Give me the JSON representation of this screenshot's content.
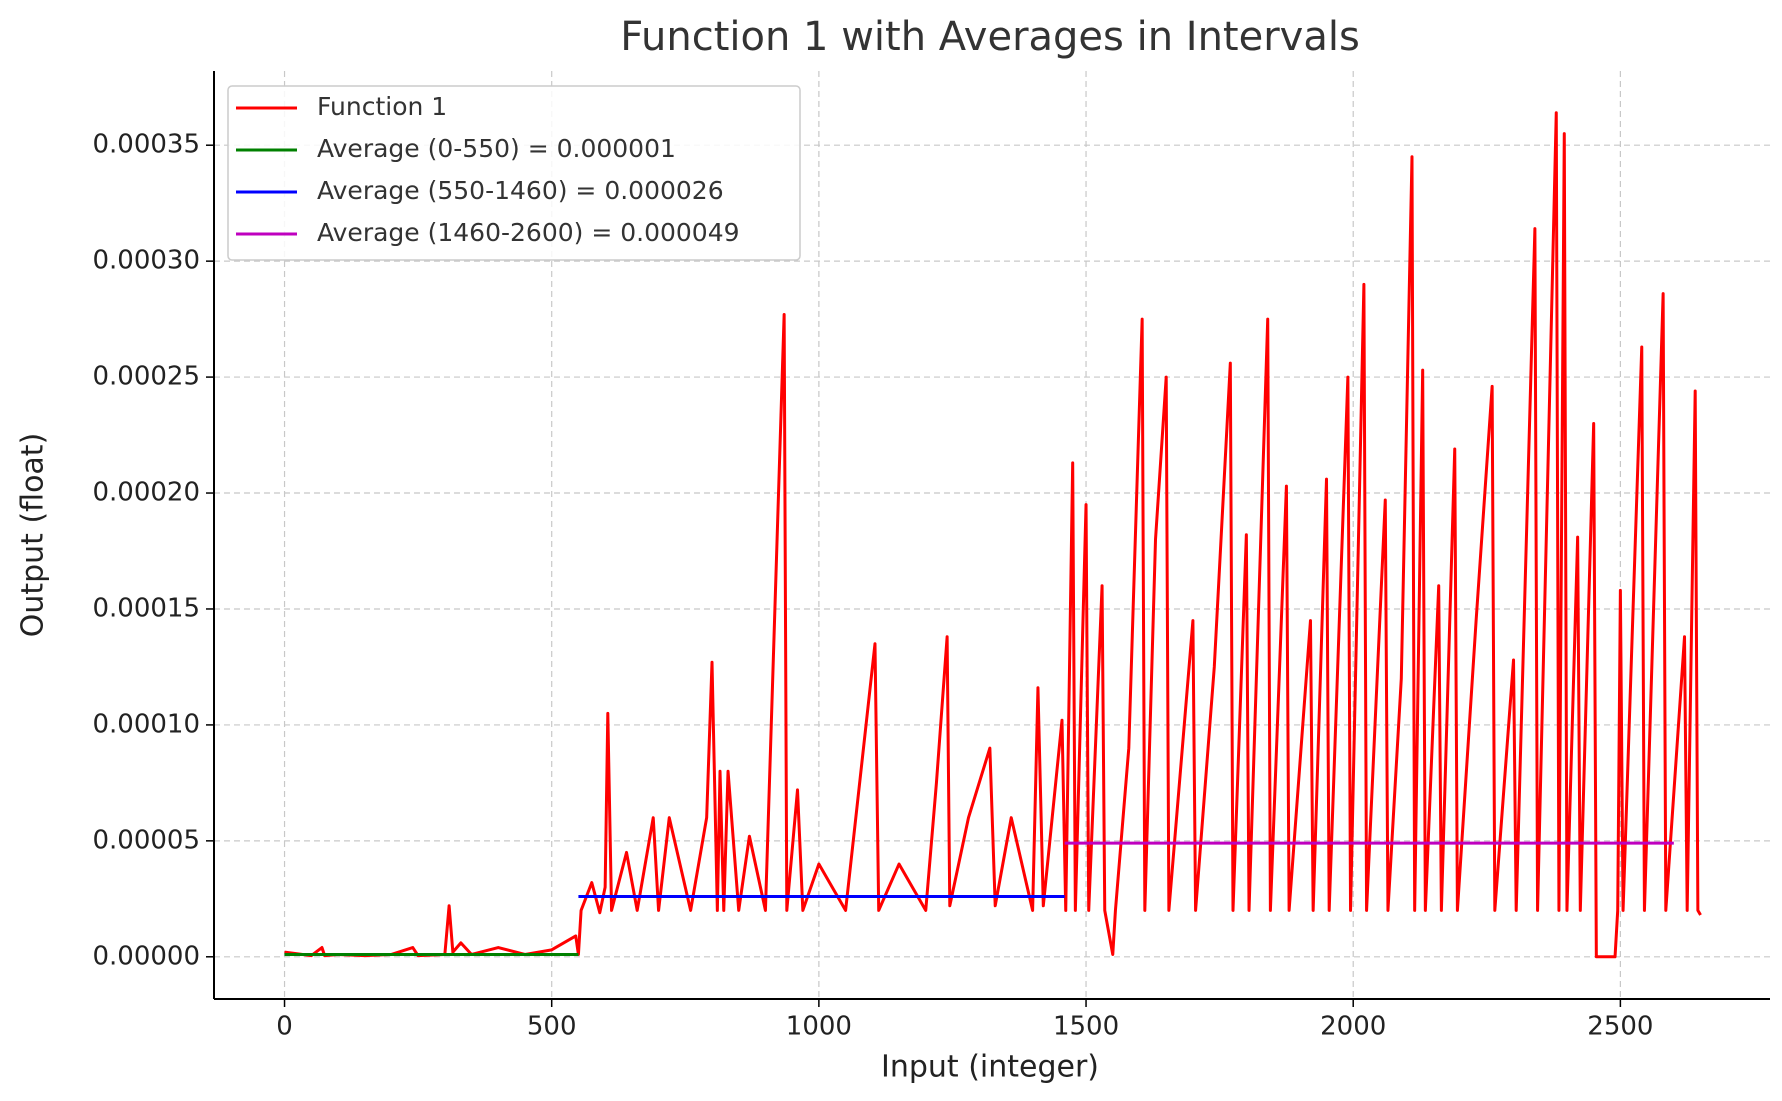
{
  "chart_data": {
    "type": "line",
    "title": "Function 1 with Averages in Intervals",
    "xlabel": "Input (integer)",
    "ylabel": "Output (float)",
    "xlim": [
      -132,
      2780
    ],
    "ylim": [
      -1.82e-05,
      0.000382
    ],
    "xticks": [
      0,
      500,
      1000,
      1500,
      2000,
      2500
    ],
    "yticks": [
      {
        "value": 0,
        "label": "0.00000"
      },
      {
        "value": 5e-05,
        "label": "0.00005"
      },
      {
        "value": 0.0001,
        "label": "0.00010"
      },
      {
        "value": 0.00015,
        "label": "0.00015"
      },
      {
        "value": 0.0002,
        "label": "0.00020"
      },
      {
        "value": 0.00025,
        "label": "0.00025"
      },
      {
        "value": 0.0003,
        "label": "0.00030"
      },
      {
        "value": 0.00035,
        "label": "0.00035"
      }
    ],
    "grid": true,
    "legend": "upper left",
    "series": [
      {
        "name": "Function 1",
        "color": "#ff0000",
        "x": [
          0,
          50,
          70,
          75,
          100,
          150,
          200,
          240,
          250,
          300,
          308,
          315,
          330,
          350,
          400,
          450,
          500,
          545,
          550,
          555,
          575,
          590,
          600,
          605,
          612,
          640,
          660,
          690,
          700,
          720,
          760,
          790,
          800,
          810,
          815,
          822,
          830,
          850,
          870,
          900,
          935,
          940,
          960,
          970,
          1000,
          1050,
          1105,
          1112,
          1150,
          1200,
          1220,
          1240,
          1245,
          1280,
          1320,
          1330,
          1360,
          1400,
          1410,
          1420,
          1455,
          1462,
          1475,
          1480,
          1500,
          1505,
          1530,
          1535,
          1550,
          1555,
          1580,
          1605,
          1610,
          1630,
          1650,
          1655,
          1700,
          1705,
          1740,
          1770,
          1775,
          1800,
          1805,
          1840,
          1845,
          1875,
          1880,
          1920,
          1925,
          1950,
          1955,
          1990,
          1995,
          2020,
          2025,
          2060,
          2065,
          2090,
          2110,
          2115,
          2130,
          2135,
          2160,
          2165,
          2190,
          2195,
          2230,
          2260,
          2265,
          2300,
          2305,
          2340,
          2345,
          2380,
          2385,
          2395,
          2400,
          2420,
          2425,
          2450,
          2455,
          2460,
          2490,
          2495,
          2500,
          2505,
          2540,
          2545,
          2580,
          2585,
          2620,
          2625,
          2640,
          2645,
          2650
        ],
        "values": [
          2e-06,
          5e-07,
          4e-06,
          5e-07,
          1e-06,
          5e-07,
          1e-06,
          4e-06,
          5e-07,
          1e-06,
          2.2e-05,
          2e-06,
          6e-06,
          1e-06,
          4e-06,
          1e-06,
          3e-06,
          9e-06,
          1e-06,
          2e-05,
          3.2e-05,
          1.9e-05,
          3e-05,
          0.000105,
          2e-05,
          4.5e-05,
          2e-05,
          6e-05,
          2e-05,
          6e-05,
          2e-05,
          6e-05,
          0.000127,
          2e-05,
          8e-05,
          2e-05,
          8e-05,
          2e-05,
          5.2e-05,
          2e-05,
          0.000277,
          2e-05,
          7.2e-05,
          2e-05,
          4e-05,
          2e-05,
          0.000135,
          2e-05,
          4e-05,
          2e-05,
          7.5e-05,
          0.000138,
          2.2e-05,
          6e-05,
          9e-05,
          2.2e-05,
          6e-05,
          2e-05,
          0.000116,
          2.2e-05,
          0.000102,
          2e-05,
          0.000213,
          2e-05,
          0.000195,
          2e-05,
          0.00016,
          2e-05,
          1e-06,
          2e-05,
          9e-05,
          0.000275,
          2e-05,
          0.00018,
          0.00025,
          2e-05,
          0.000145,
          2e-05,
          0.000125,
          0.000256,
          2e-05,
          0.000182,
          2e-05,
          0.000275,
          2e-05,
          0.000203,
          2e-05,
          0.000145,
          2e-05,
          0.000206,
          2e-05,
          0.00025,
          2e-05,
          0.00029,
          2e-05,
          0.000197,
          2e-05,
          0.00012,
          0.000345,
          2e-05,
          0.000253,
          2e-05,
          0.00016,
          2e-05,
          0.000219,
          2e-05,
          0.000145,
          0.000246,
          2e-05,
          0.000128,
          2e-05,
          0.000314,
          2e-05,
          0.000364,
          2e-05,
          0.000355,
          2e-05,
          0.000181,
          2e-05,
          0.00023,
          0,
          0,
          0,
          2e-05,
          0.000158,
          2e-05,
          0.000263,
          2e-05,
          0.000286,
          2e-05,
          0.000138,
          2e-05,
          0.000244,
          2e-05,
          1.8e-05
        ]
      },
      {
        "name": "Average (0-550) = 0.000001",
        "color": "#008000",
        "x": [
          0,
          550
        ],
        "values": [
          1e-06,
          1e-06
        ]
      },
      {
        "name": "Average (550-1460) = 0.000026",
        "color": "#0000ff",
        "x": [
          550,
          1460
        ],
        "values": [
          2.6e-05,
          2.6e-05
        ]
      },
      {
        "name": "Average (1460-2600) = 0.000049",
        "color": "#bf00bf",
        "x": [
          1460,
          2600
        ],
        "values": [
          4.9e-05,
          4.9e-05
        ]
      }
    ]
  }
}
